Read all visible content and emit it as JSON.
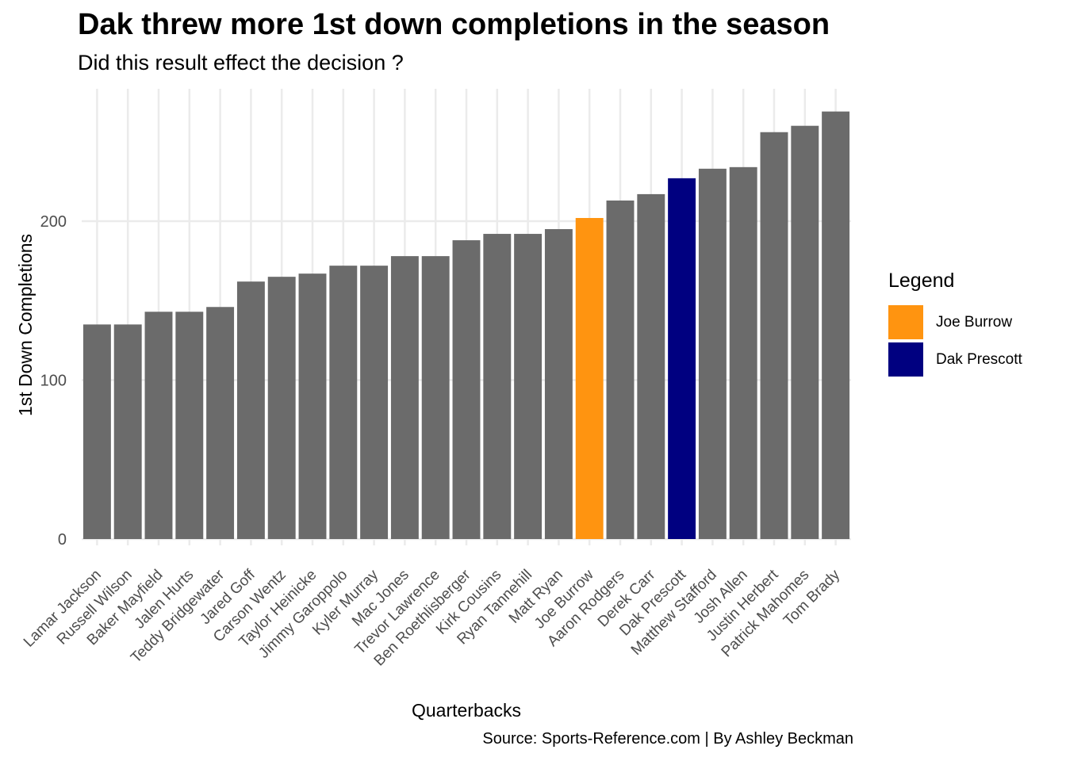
{
  "header": {
    "title": "Dak threw more 1st down completions in the season",
    "subtitle": "Did this result effect the decision ?"
  },
  "caption": "Source: Sports-Reference.com | By Ashley Beckman",
  "legend": {
    "title": "Legend",
    "items": [
      {
        "label": "Joe Burrow",
        "color": "#FF9410"
      },
      {
        "label": "Dak Prescott",
        "color": "#000080"
      }
    ]
  },
  "chart_data": {
    "type": "bar",
    "title": "Dak threw more 1st down completions in the season",
    "subtitle": "Did this result effect the decision ?",
    "xlabel": "Quarterbacks",
    "ylabel": "1st Down Completions",
    "ylim": [
      0,
      300
    ],
    "yticks": [
      0,
      100,
      200
    ],
    "grid": true,
    "legend_position": "right",
    "default_color": "#6B6B6B",
    "categories": [
      "Lamar Jackson",
      "Russell Wilson",
      "Baker Mayfield",
      "Jalen Hurts",
      "Teddy Bridgewater",
      "Jared Goff",
      "Carson Wentz",
      "Taylor Heinicke",
      "Jimmy Garoppolo",
      "Kyler Murray",
      "Mac Jones",
      "Trevor Lawrence",
      "Ben Roethlisberger",
      "Kirk Cousins",
      "Ryan Tannehill",
      "Matt Ryan",
      "Joe Burrow",
      "Aaron Rodgers",
      "Derek Carr",
      "Dak Prescott",
      "Matthew Stafford",
      "Josh Allen",
      "Justin Herbert",
      "Patrick Mahomes",
      "Tom Brady"
    ],
    "values": [
      135,
      135,
      143,
      143,
      146,
      162,
      165,
      167,
      172,
      172,
      178,
      178,
      188,
      192,
      192,
      195,
      202,
      213,
      217,
      227,
      233,
      234,
      256,
      260,
      269
    ],
    "highlight": {
      "Joe Burrow": "#FF9410",
      "Dak Prescott": "#000080"
    }
  }
}
